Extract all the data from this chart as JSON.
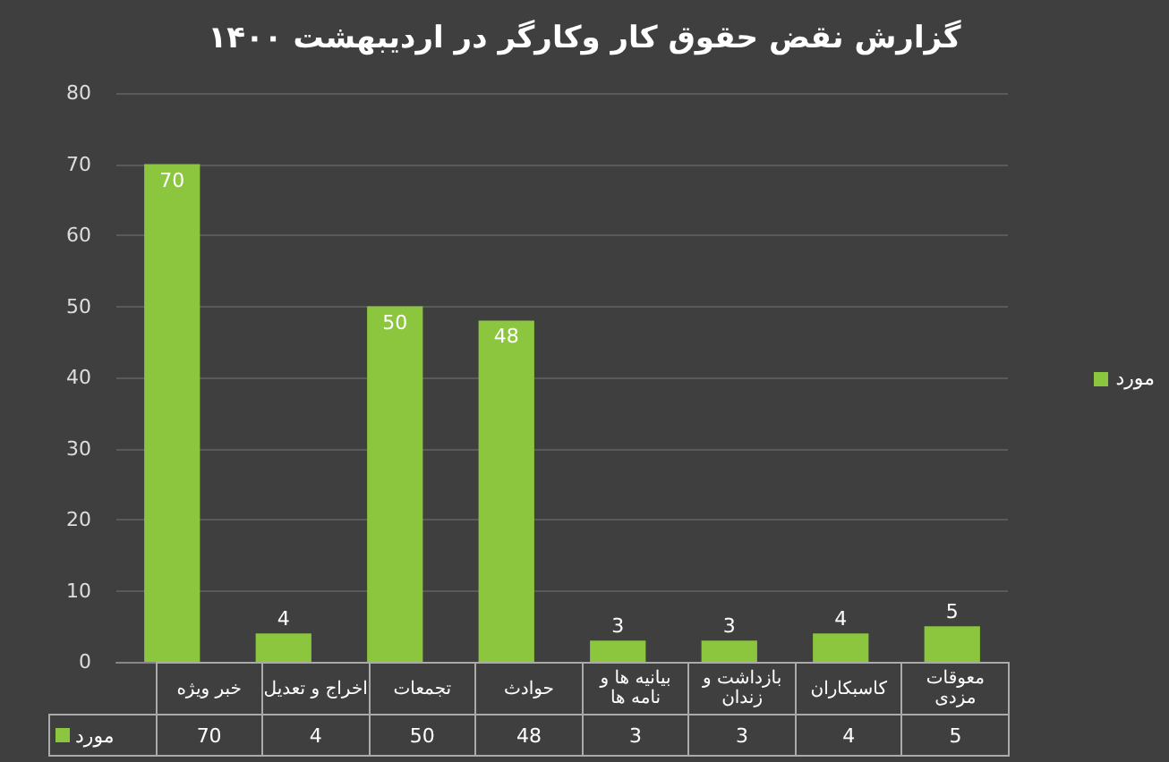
{
  "chart_data": {
    "type": "bar",
    "title": "گزارش نقض حقوق کار وکارگر در اردیبهشت ۱۴۰۰",
    "categories": [
      "خبر ویژه",
      "اخراج و تعدیل",
      "تجمعات",
      "حوادث",
      "بیانیه ها و نامه ها",
      "بازداشت و زندان",
      "کاسبکاران",
      "معوقات مزدی"
    ],
    "series": [
      {
        "name": "مورد",
        "color": "#8cc63f",
        "values": [
          70,
          4,
          50,
          48,
          3,
          3,
          4,
          5
        ]
      }
    ],
    "ylim": [
      0,
      80
    ],
    "yticks": [
      0,
      10,
      20,
      30,
      40,
      50,
      60,
      70,
      80
    ],
    "grid": "y",
    "legend": "right",
    "data_labels": true,
    "annotations": [
      "70",
      "4",
      "50",
      "48",
      "3",
      "3",
      "4",
      "5"
    ]
  }
}
